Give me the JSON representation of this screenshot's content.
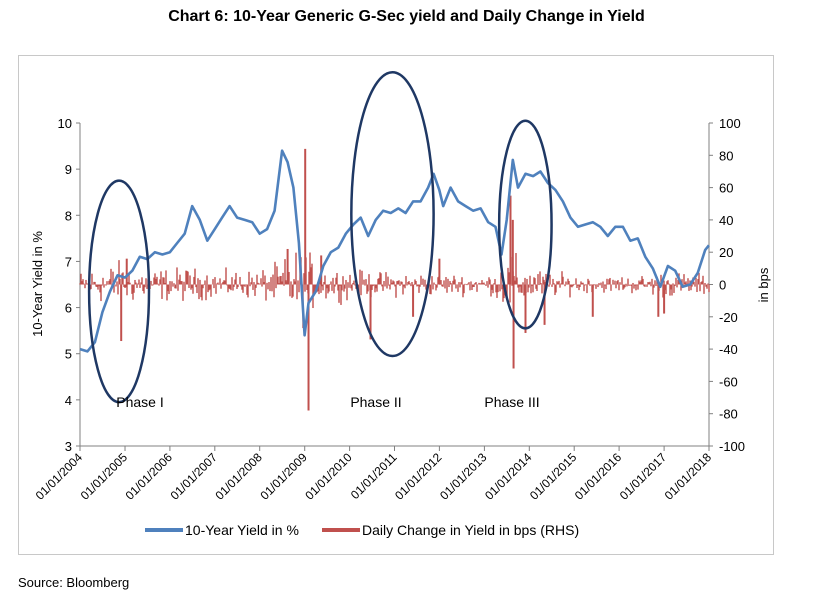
{
  "page": {
    "title": "Chart 6: 10-Year Generic G-Sec yield and Daily Change in Yield",
    "source": "Source: Bloomberg"
  },
  "colors": {
    "yield": "#4F81BD",
    "change": "#C0504D",
    "ellipse": "#1F3864",
    "axis": "#808080"
  },
  "chart_data": {
    "type": "line",
    "title": "Chart 6: 10-Year Generic G-Sec yield and Daily Change in Yield",
    "ylabel": "10-Year Yield in %",
    "y2label": "in bps",
    "ylim": [
      3,
      10
    ],
    "y2lim": [
      -100,
      100
    ],
    "yticks": [
      3,
      4,
      5,
      6,
      7,
      8,
      9,
      10
    ],
    "y2ticks": [
      -100,
      -80,
      -60,
      -40,
      -20,
      0,
      20,
      40,
      60,
      80,
      100
    ],
    "xlim": [
      "2004-01-01",
      "2018-01-01"
    ],
    "xticks": [
      "01/01/2004",
      "01/01/2005",
      "01/01/2006",
      "01/01/2007",
      "01/01/2008",
      "01/01/2009",
      "01/01/2010",
      "01/01/2011",
      "01/01/2012",
      "01/01/2013",
      "01/01/2014",
      "01/01/2015",
      "01/01/2016",
      "01/01/2017",
      "01/01/2018"
    ],
    "legend_position": "bottom",
    "grid": false,
    "series": [
      {
        "name": "10-Year Yield in %",
        "axis": "left",
        "points": [
          [
            "2004-01-01",
            5.1
          ],
          [
            "2004-03-01",
            5.05
          ],
          [
            "2004-05-01",
            5.25
          ],
          [
            "2004-07-01",
            5.9
          ],
          [
            "2004-09-01",
            6.35
          ],
          [
            "2004-11-01",
            6.7
          ],
          [
            "2005-01-01",
            6.65
          ],
          [
            "2005-03-01",
            6.8
          ],
          [
            "2005-05-01",
            7.1
          ],
          [
            "2005-07-01",
            7.05
          ],
          [
            "2005-09-01",
            7.2
          ],
          [
            "2005-11-01",
            7.15
          ],
          [
            "2006-01-01",
            7.2
          ],
          [
            "2006-03-01",
            7.4
          ],
          [
            "2006-05-01",
            7.6
          ],
          [
            "2006-07-01",
            8.2
          ],
          [
            "2006-09-01",
            7.9
          ],
          [
            "2006-11-01",
            7.45
          ],
          [
            "2007-01-01",
            7.7
          ],
          [
            "2007-03-01",
            7.95
          ],
          [
            "2007-05-01",
            8.2
          ],
          [
            "2007-07-01",
            7.95
          ],
          [
            "2007-09-01",
            7.9
          ],
          [
            "2007-11-01",
            7.85
          ],
          [
            "2008-01-01",
            7.6
          ],
          [
            "2008-03-01",
            7.7
          ],
          [
            "2008-05-01",
            8.1
          ],
          [
            "2008-07-01",
            9.4
          ],
          [
            "2008-08-15",
            9.15
          ],
          [
            "2008-10-01",
            8.6
          ],
          [
            "2008-11-15",
            7.4
          ],
          [
            "2008-12-31",
            5.4
          ],
          [
            "2009-02-01",
            6.1
          ],
          [
            "2009-04-01",
            6.35
          ],
          [
            "2009-06-01",
            6.9
          ],
          [
            "2009-08-01",
            7.2
          ],
          [
            "2009-10-01",
            7.3
          ],
          [
            "2009-12-01",
            7.6
          ],
          [
            "2010-02-01",
            7.8
          ],
          [
            "2010-04-01",
            7.95
          ],
          [
            "2010-06-01",
            7.55
          ],
          [
            "2010-08-01",
            7.9
          ],
          [
            "2010-10-01",
            8.1
          ],
          [
            "2010-12-01",
            8.05
          ],
          [
            "2011-02-01",
            8.15
          ],
          [
            "2011-04-01",
            8.05
          ],
          [
            "2011-06-01",
            8.3
          ],
          [
            "2011-08-01",
            8.3
          ],
          [
            "2011-10-01",
            8.6
          ],
          [
            "2011-11-15",
            8.9
          ],
          [
            "2011-12-31",
            8.55
          ],
          [
            "2012-02-01",
            8.2
          ],
          [
            "2012-04-01",
            8.6
          ],
          [
            "2012-06-01",
            8.3
          ],
          [
            "2012-08-01",
            8.2
          ],
          [
            "2012-10-01",
            8.1
          ],
          [
            "2012-12-01",
            8.15
          ],
          [
            "2013-02-01",
            7.85
          ],
          [
            "2013-04-01",
            7.75
          ],
          [
            "2013-05-20",
            7.15
          ],
          [
            "2013-07-01",
            7.9
          ],
          [
            "2013-08-20",
            9.2
          ],
          [
            "2013-10-01",
            8.6
          ],
          [
            "2013-12-01",
            8.9
          ],
          [
            "2014-02-01",
            8.85
          ],
          [
            "2014-04-01",
            8.95
          ],
          [
            "2014-06-01",
            8.7
          ],
          [
            "2014-08-01",
            8.55
          ],
          [
            "2014-10-01",
            8.3
          ],
          [
            "2014-12-01",
            7.95
          ],
          [
            "2015-02-01",
            7.75
          ],
          [
            "2015-04-01",
            7.8
          ],
          [
            "2015-06-01",
            7.85
          ],
          [
            "2015-08-01",
            7.75
          ],
          [
            "2015-10-01",
            7.55
          ],
          [
            "2015-12-01",
            7.75
          ],
          [
            "2016-02-01",
            7.75
          ],
          [
            "2016-04-01",
            7.45
          ],
          [
            "2016-06-01",
            7.5
          ],
          [
            "2016-08-01",
            7.1
          ],
          [
            "2016-10-01",
            6.85
          ],
          [
            "2016-12-01",
            6.45
          ],
          [
            "2017-02-01",
            6.9
          ],
          [
            "2017-04-01",
            6.8
          ],
          [
            "2017-06-01",
            6.45
          ],
          [
            "2017-08-01",
            6.5
          ],
          [
            "2017-10-01",
            6.75
          ],
          [
            "2017-12-01",
            7.25
          ],
          [
            "2017-12-31",
            7.35
          ]
        ]
      },
      {
        "name": "Daily Change in Yield in bps (RHS)",
        "axis": "right",
        "envelope": [
          [
            "2004-01-01",
            10
          ],
          [
            "2004-06-01",
            14
          ],
          [
            "2004-12-01",
            18
          ],
          [
            "2005-03-01",
            14
          ],
          [
            "2005-08-01",
            12
          ],
          [
            "2006-06-01",
            13
          ],
          [
            "2007-01-01",
            10
          ],
          [
            "2007-12-01",
            11
          ],
          [
            "2008-06-01",
            16
          ],
          [
            "2008-10-01",
            25
          ],
          [
            "2009-01-01",
            30
          ],
          [
            "2009-04-01",
            15
          ],
          [
            "2009-09-01",
            12
          ],
          [
            "2010-06-01",
            10
          ],
          [
            "2011-06-01",
            9
          ],
          [
            "2012-06-01",
            8
          ],
          [
            "2013-03-01",
            8
          ],
          [
            "2013-08-01",
            26
          ],
          [
            "2013-12-01",
            14
          ],
          [
            "2014-06-01",
            10
          ],
          [
            "2015-06-01",
            6
          ],
          [
            "2016-06-01",
            7
          ],
          [
            "2017-01-01",
            10
          ],
          [
            "2017-12-31",
            8
          ]
        ],
        "spikes": [
          [
            "2004-12-01",
            -35
          ],
          [
            "2005-01-15",
            16
          ],
          [
            "2008-08-15",
            22
          ],
          [
            "2009-01-05",
            84
          ],
          [
            "2009-02-01",
            -78
          ],
          [
            "2009-05-15",
            18
          ],
          [
            "2010-06-20",
            -34
          ],
          [
            "2011-06-01",
            -20
          ],
          [
            "2012-01-01",
            16
          ],
          [
            "2013-08-01",
            55
          ],
          [
            "2013-08-20",
            40
          ],
          [
            "2013-08-26",
            -52
          ],
          [
            "2013-12-01",
            -30
          ],
          [
            "2014-05-05",
            -25
          ],
          [
            "2015-06-01",
            -20
          ],
          [
            "2016-11-15",
            -20
          ],
          [
            "2017-01-01",
            -18
          ]
        ]
      }
    ],
    "annotations": [
      {
        "label": "Phase I",
        "from": "2004-03-15",
        "to": "2005-07-15",
        "ylow": 3.95,
        "yhigh": 8.75
      },
      {
        "label": "Phase II",
        "from": "2010-01-15",
        "to": "2011-11-15",
        "ylow": 4.95,
        "yhigh": 11.1
      },
      {
        "label": "Phase III",
        "from": "2013-05-01",
        "to": "2014-07-01",
        "ylow": 5.55,
        "yhigh": 10.05
      }
    ]
  }
}
